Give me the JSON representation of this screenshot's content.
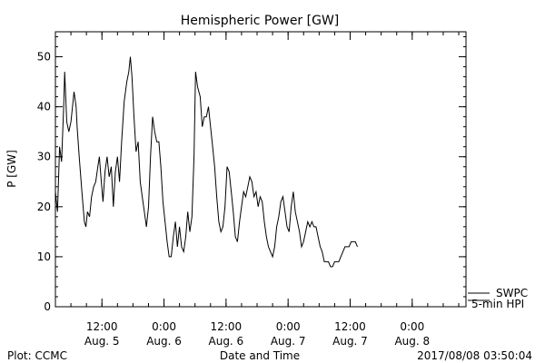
{
  "chart_data": {
    "type": "line",
    "title": "Hemispheric Power [GW]",
    "xlabel": "Date and Time",
    "ylabel": "P [GW]",
    "ylim": [
      0,
      55
    ],
    "xlim_hours": [
      0,
      79.4
    ],
    "yticks": [
      0,
      10,
      20,
      30,
      40,
      50
    ],
    "xticks": [
      {
        "time": "12:00",
        "date": "Aug. 5",
        "h": 9
      },
      {
        "time": "0:00",
        "date": "Aug. 6",
        "h": 21
      },
      {
        "time": "12:00",
        "date": "Aug. 6",
        "h": 33
      },
      {
        "time": "0:00",
        "date": "Aug. 7",
        "h": 45
      },
      {
        "time": "12:00",
        "date": "Aug. 7",
        "h": 57
      },
      {
        "time": "0:00",
        "date": "Aug. 8",
        "h": 69
      }
    ],
    "grid": false,
    "legend": {
      "labels": [
        "SWPC",
        "5-min HPI"
      ],
      "placement": "right"
    },
    "series": [
      {
        "name": "SWPC",
        "points": [
          [
            0,
            23
          ],
          [
            0.4,
            19
          ],
          [
            0.8,
            32
          ],
          [
            1.2,
            29
          ],
          [
            1.6,
            40
          ],
          [
            1.8,
            47
          ],
          [
            2.2,
            37
          ],
          [
            2.6,
            35
          ],
          [
            3,
            37
          ],
          [
            3.4,
            41
          ],
          [
            3.6,
            43
          ],
          [
            4,
            40
          ],
          [
            4.2,
            36
          ],
          [
            4.6,
            30
          ],
          [
            4.9,
            26
          ],
          [
            5.2,
            22
          ],
          [
            5.6,
            17
          ],
          [
            5.9,
            16
          ],
          [
            6.2,
            19
          ],
          [
            6.6,
            18
          ],
          [
            7,
            22
          ],
          [
            7.4,
            24
          ],
          [
            7.8,
            25
          ],
          [
            8.2,
            28
          ],
          [
            8.5,
            30
          ],
          [
            8.8,
            26
          ],
          [
            9.2,
            21
          ],
          [
            9.6,
            27
          ],
          [
            10,
            30
          ],
          [
            10.4,
            26
          ],
          [
            10.8,
            28
          ],
          [
            11.2,
            20
          ],
          [
            11.6,
            27
          ],
          [
            12,
            30
          ],
          [
            12.4,
            25
          ],
          [
            12.8,
            33
          ],
          [
            13.3,
            41
          ],
          [
            13.8,
            45
          ],
          [
            14.2,
            47
          ],
          [
            14.5,
            50
          ],
          [
            14.8,
            46
          ],
          [
            15.2,
            38
          ],
          [
            15.6,
            31
          ],
          [
            16,
            33
          ],
          [
            16.4,
            25
          ],
          [
            16.8,
            22
          ],
          [
            17.2,
            19
          ],
          [
            17.6,
            16
          ],
          [
            18,
            20
          ],
          [
            18.4,
            30
          ],
          [
            18.8,
            38
          ],
          [
            19.2,
            35
          ],
          [
            19.6,
            33
          ],
          [
            20,
            33
          ],
          [
            20.4,
            28
          ],
          [
            20.8,
            21
          ],
          [
            21.2,
            17
          ],
          [
            21.6,
            13
          ],
          [
            22,
            10
          ],
          [
            22.4,
            10
          ],
          [
            22.8,
            14
          ],
          [
            23.2,
            17
          ],
          [
            23.6,
            12
          ],
          [
            24,
            16
          ],
          [
            24.4,
            12
          ],
          [
            24.8,
            11
          ],
          [
            25.2,
            14
          ],
          [
            25.6,
            19
          ],
          [
            26,
            15
          ],
          [
            26.4,
            18
          ],
          [
            26.8,
            30
          ],
          [
            27.1,
            47
          ],
          [
            27.5,
            44
          ],
          [
            28,
            42
          ],
          [
            28.4,
            36
          ],
          [
            28.8,
            38
          ],
          [
            29.2,
            38
          ],
          [
            29.6,
            40
          ],
          [
            30,
            36
          ],
          [
            30.4,
            32
          ],
          [
            30.8,
            28
          ],
          [
            31.2,
            22
          ],
          [
            31.6,
            17
          ],
          [
            32,
            15
          ],
          [
            32.4,
            16
          ],
          [
            32.8,
            20
          ],
          [
            33.2,
            28
          ],
          [
            33.6,
            27
          ],
          [
            34,
            23
          ],
          [
            34.4,
            19
          ],
          [
            34.8,
            14
          ],
          [
            35.2,
            13
          ],
          [
            35.6,
            17
          ],
          [
            36,
            20
          ],
          [
            36.4,
            23
          ],
          [
            36.8,
            22
          ],
          [
            37.2,
            24
          ],
          [
            37.6,
            26
          ],
          [
            38,
            25
          ],
          [
            38.4,
            22
          ],
          [
            38.8,
            23
          ],
          [
            39.2,
            20
          ],
          [
            39.6,
            22
          ],
          [
            40,
            21
          ],
          [
            40.4,
            17
          ],
          [
            40.8,
            14
          ],
          [
            41.2,
            12
          ],
          [
            41.6,
            11
          ],
          [
            42,
            10
          ],
          [
            42.4,
            12
          ],
          [
            42.8,
            16
          ],
          [
            43.2,
            18
          ],
          [
            43.6,
            21
          ],
          [
            44,
            22
          ],
          [
            44.4,
            19
          ],
          [
            44.8,
            16
          ],
          [
            45.2,
            15
          ],
          [
            45.6,
            20
          ],
          [
            46,
            23
          ],
          [
            46.4,
            19
          ],
          [
            46.8,
            17
          ],
          [
            47.2,
            15
          ],
          [
            47.6,
            12
          ],
          [
            48,
            13
          ],
          [
            48.4,
            15
          ],
          [
            48.8,
            17
          ],
          [
            49.2,
            16
          ],
          [
            49.6,
            17
          ],
          [
            50,
            16
          ],
          [
            50.4,
            16
          ],
          [
            50.8,
            14
          ],
          [
            51.2,
            12
          ],
          [
            51.6,
            11
          ],
          [
            52,
            9
          ],
          [
            52.4,
            9
          ],
          [
            52.8,
            9
          ],
          [
            53.2,
            8
          ],
          [
            53.6,
            8
          ],
          [
            54,
            9
          ],
          [
            54.4,
            9
          ],
          [
            54.8,
            9
          ],
          [
            55.2,
            10
          ],
          [
            55.6,
            11
          ],
          [
            56,
            12
          ],
          [
            56.4,
            12
          ],
          [
            56.8,
            12
          ],
          [
            57.2,
            13
          ],
          [
            57.6,
            13
          ],
          [
            58,
            13
          ],
          [
            58.4,
            12
          ]
        ]
      },
      {
        "name": "5-min HPI",
        "points": []
      }
    ],
    "footer_left": "Plot: CCMC",
    "footer_right": "2017/08/08 03:50:04"
  }
}
